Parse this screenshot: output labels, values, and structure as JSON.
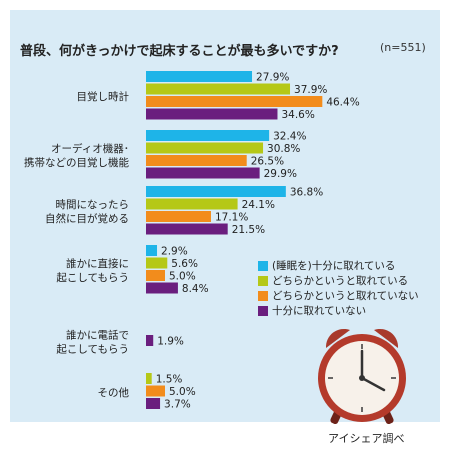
{
  "chart_data": {
    "type": "bar",
    "orientation": "horizontal",
    "title": "普段、何がきっかけで起床することが最も多いですか?",
    "note": "(n=551)",
    "categories": [
      [
        "目覚し時計"
      ],
      [
        "オーディオ機器･",
        "携帯などの目覚し機能"
      ],
      [
        "時間になったら",
        "自然に目が覚める"
      ],
      [
        "誰かに直接に",
        "起こしてもらう"
      ],
      [
        "誰かに電話で",
        "起こしてもらう"
      ],
      [
        "その他"
      ]
    ],
    "series": [
      {
        "name": "(睡眠を)十分に取れている",
        "color": "#1eb4e8",
        "values": [
          27.9,
          32.4,
          36.8,
          2.9,
          null,
          null
        ]
      },
      {
        "name": "どちらかというと取れている",
        "color": "#b5c817",
        "values": [
          37.9,
          30.8,
          24.1,
          5.6,
          null,
          1.5
        ]
      },
      {
        "name": "どちらかというと取れていない",
        "color": "#f28c1c",
        "values": [
          46.4,
          26.5,
          17.1,
          5.0,
          null,
          5.0
        ]
      },
      {
        "name": "十分に取れていない",
        "color": "#6a1e7e",
        "values": [
          34.6,
          29.9,
          21.5,
          8.4,
          1.9,
          3.7
        ]
      }
    ],
    "value_suffix": "%",
    "legend_position": "right-middle"
  },
  "source": "アイシェア調べ"
}
